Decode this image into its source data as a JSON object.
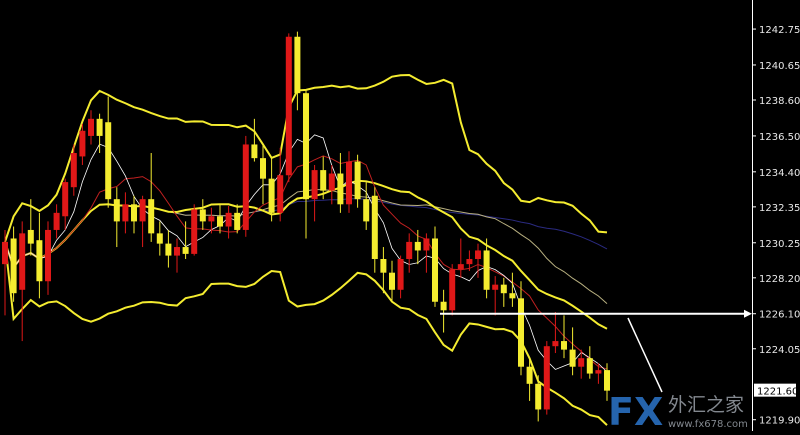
{
  "chart_data": {
    "type": "candlestick",
    "title": "",
    "xlabel": "",
    "ylabel": "",
    "ylim": [
      1219.24,
      1244.45
    ],
    "yticks": [
      "1242.75",
      "1240.65",
      "1238.60",
      "1236.50",
      "1234.40",
      "1232.35",
      "1230.25",
      "1228.20",
      "1226.10",
      "1224.05",
      "1221.60",
      "1219.90"
    ],
    "current_price": "1221.60",
    "horizontal_line_price": "1226.10",
    "grid": false,
    "colors": {
      "background": "#000000",
      "up": "#e01818",
      "down": "#f4ec30",
      "bollinger": "#f4ec30",
      "ma_short": "#ffffff",
      "ma_mid": "#c02020",
      "ma_long": "#2a2a80",
      "ma_extra": "#b8b080",
      "axis": "#ffffff"
    },
    "overlays": [
      "Bollinger bands (yellow)",
      "short MA (white)",
      "mid MA (red)",
      "long MA (blue)",
      "MA (grey)"
    ],
    "ohlc": [
      [
        1229.0,
        1231.0,
        1226.0,
        1230.3
      ],
      [
        1230.5,
        1231.2,
        1226.8,
        1227.3
      ],
      [
        1227.5,
        1231.5,
        1224.5,
        1230.8
      ],
      [
        1231.0,
        1232.8,
        1229.5,
        1230.2
      ],
      [
        1230.4,
        1232.0,
        1227.0,
        1228.0
      ],
      [
        1228.0,
        1231.5,
        1227.2,
        1231.0
      ],
      [
        1231.0,
        1232.5,
        1230.5,
        1232.0
      ],
      [
        1231.8,
        1234.0,
        1231.0,
        1233.8
      ],
      [
        1233.5,
        1236.0,
        1233.0,
        1235.5
      ],
      [
        1235.3,
        1237.2,
        1234.8,
        1236.8
      ],
      [
        1236.5,
        1238.0,
        1236.0,
        1237.5
      ],
      [
        1237.5,
        1237.8,
        1235.5,
        1236.5
      ],
      [
        1237.3,
        1238.8,
        1232.3,
        1232.8
      ],
      [
        1232.8,
        1233.5,
        1230.0,
        1231.5
      ],
      [
        1231.5,
        1233.2,
        1230.8,
        1232.5
      ],
      [
        1232.5,
        1233.0,
        1230.8,
        1231.5
      ],
      [
        1231.5,
        1233.0,
        1230.0,
        1232.8
      ],
      [
        1232.8,
        1235.5,
        1230.3,
        1230.8
      ],
      [
        1230.8,
        1231.5,
        1229.5,
        1230.2
      ],
      [
        1230.2,
        1231.0,
        1228.8,
        1229.5
      ],
      [
        1229.5,
        1230.5,
        1228.5,
        1230.0
      ],
      [
        1230.0,
        1231.5,
        1229.3,
        1229.6
      ],
      [
        1229.6,
        1232.5,
        1229.5,
        1232.2
      ],
      [
        1232.2,
        1232.8,
        1231.0,
        1231.5
      ],
      [
        1231.5,
        1232.3,
        1230.8,
        1231.8
      ],
      [
        1231.8,
        1232.5,
        1230.8,
        1231.2
      ],
      [
        1231.2,
        1232.4,
        1230.5,
        1232.0
      ],
      [
        1232.0,
        1232.5,
        1230.8,
        1231.0
      ],
      [
        1231.0,
        1236.5,
        1230.6,
        1236.0
      ],
      [
        1236.0,
        1237.5,
        1235.0,
        1235.2
      ],
      [
        1235.2,
        1236.0,
        1232.5,
        1234.0
      ],
      [
        1234.0,
        1235.3,
        1231.5,
        1232.0
      ],
      [
        1232.0,
        1235.8,
        1231.5,
        1234.2
      ],
      [
        1234.2,
        1242.5,
        1233.8,
        1242.3
      ],
      [
        1242.3,
        1242.6,
        1238.0,
        1239.0
      ],
      [
        1239.0,
        1239.2,
        1230.5,
        1232.8
      ],
      [
        1232.8,
        1234.8,
        1231.5,
        1234.5
      ],
      [
        1234.5,
        1235.3,
        1232.8,
        1233.3
      ],
      [
        1233.3,
        1234.8,
        1232.5,
        1234.3
      ],
      [
        1234.3,
        1235.5,
        1232.0,
        1232.5
      ],
      [
        1232.5,
        1235.6,
        1232.0,
        1235.0
      ],
      [
        1235.0,
        1235.4,
        1232.3,
        1232.8
      ],
      [
        1232.8,
        1233.8,
        1231.0,
        1231.5
      ],
      [
        1233.0,
        1233.5,
        1228.5,
        1229.3
      ],
      [
        1229.3,
        1230.0,
        1227.3,
        1228.5
      ],
      [
        1228.5,
        1229.2,
        1226.8,
        1227.5
      ],
      [
        1227.5,
        1229.5,
        1227.0,
        1229.3
      ],
      [
        1229.3,
        1230.8,
        1228.5,
        1230.3
      ],
      [
        1230.3,
        1231.0,
        1229.0,
        1229.8
      ],
      [
        1229.8,
        1230.8,
        1228.5,
        1230.5
      ],
      [
        1230.5,
        1231.2,
        1226.5,
        1226.8
      ],
      [
        1226.8,
        1227.5,
        1225.0,
        1226.3
      ],
      [
        1226.3,
        1229.0,
        1226.0,
        1228.7
      ],
      [
        1228.7,
        1230.5,
        1228.2,
        1229.0
      ],
      [
        1229.0,
        1229.8,
        1228.6,
        1229.3
      ],
      [
        1229.3,
        1230.2,
        1228.2,
        1229.8
      ],
      [
        1229.8,
        1230.5,
        1227.0,
        1227.5
      ],
      [
        1227.5,
        1228.3,
        1226.0,
        1227.8
      ],
      [
        1227.8,
        1228.2,
        1226.5,
        1227.3
      ],
      [
        1227.3,
        1228.5,
        1226.5,
        1227.0
      ],
      [
        1227.0,
        1228.0,
        1222.5,
        1223.0
      ],
      [
        1223.0,
        1223.5,
        1221.0,
        1222.0
      ],
      [
        1222.0,
        1222.5,
        1219.8,
        1220.5
      ],
      [
        1220.5,
        1224.5,
        1220.2,
        1224.2
      ],
      [
        1224.2,
        1226.2,
        1223.8,
        1224.5
      ],
      [
        1224.5,
        1226.0,
        1223.5,
        1224.0
      ],
      [
        1224.0,
        1225.3,
        1222.5,
        1223.0
      ],
      [
        1223.0,
        1224.0,
        1222.3,
        1223.5
      ],
      [
        1223.5,
        1224.2,
        1222.3,
        1222.6
      ],
      [
        1222.6,
        1223.2,
        1222.0,
        1222.8
      ],
      [
        1222.8,
        1223.2,
        1221.0,
        1221.6
      ]
    ]
  },
  "watermark": {
    "logo": "FX",
    "text": "外汇之家",
    "url": "www.fx678.com"
  }
}
